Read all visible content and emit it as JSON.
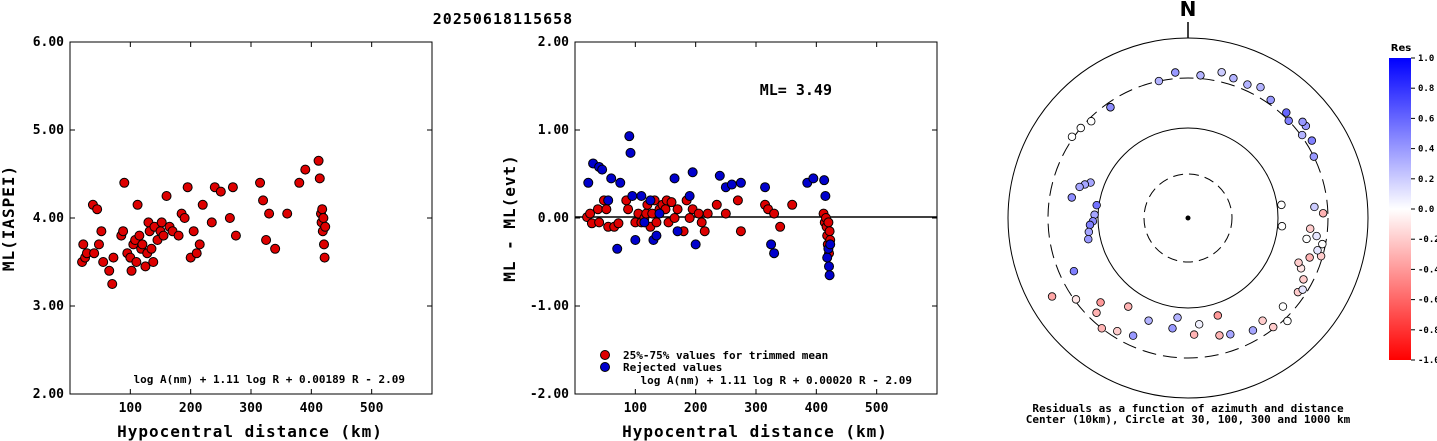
{
  "page_title": "20250618115658",
  "chart_data": [
    {
      "type": "scatter",
      "title": "",
      "xlabel": "Hypocentral distance (km)",
      "ylabel": "ML(IASPEI)",
      "xlim": [
        0,
        600
      ],
      "ylim": [
        2.0,
        6.0
      ],
      "x_ticks": [
        "100",
        "200",
        "300",
        "400",
        "500"
      ],
      "y_ticks": [
        "2.00",
        "3.00",
        "4.00",
        "5.00",
        "6.00"
      ],
      "formula": "log A(nm) + 1.11 log R + 0.00189 R - 2.09",
      "marker_color": "#dd0000",
      "series": [
        {
          "x": [
            20,
            22,
            25,
            28,
            38,
            40,
            45,
            48,
            52,
            55,
            65,
            70,
            72,
            85,
            88,
            90,
            95,
            100,
            102,
            105,
            108,
            110,
            112,
            115,
            118,
            120,
            125,
            128,
            130,
            132,
            135,
            138,
            140,
            145,
            150,
            152,
            155,
            160,
            165,
            170,
            180,
            185,
            190,
            195,
            200,
            205,
            210,
            215,
            220,
            235,
            240,
            250,
            265,
            270,
            275,
            315,
            320,
            325,
            330,
            340,
            360,
            380,
            390,
            412,
            414,
            416,
            417,
            418,
            419,
            420,
            421,
            422,
            423
          ],
          "y": [
            3.5,
            3.7,
            3.55,
            3.6,
            4.15,
            3.6,
            4.1,
            3.7,
            3.85,
            3.5,
            3.4,
            3.25,
            3.55,
            3.8,
            3.85,
            4.4,
            3.6,
            3.55,
            3.4,
            3.7,
            3.75,
            3.5,
            4.15,
            3.8,
            3.65,
            3.7,
            3.45,
            3.6,
            3.95,
            3.85,
            3.65,
            3.5,
            3.9,
            3.75,
            3.85,
            3.95,
            3.8,
            4.25,
            3.9,
            3.85,
            3.8,
            4.05,
            4.0,
            4.35,
            3.55,
            3.85,
            3.6,
            3.7,
            4.15,
            3.95,
            4.35,
            4.3,
            4.0,
            4.35,
            3.8,
            4.4,
            4.2,
            3.75,
            4.05,
            3.65,
            4.05,
            4.4,
            4.55,
            4.65,
            4.45,
            4.05,
            3.95,
            4.1,
            3.85,
            4.0,
            3.7,
            3.55,
            3.9
          ]
        }
      ]
    },
    {
      "type": "scatter",
      "title": "",
      "xlabel": "Hypocentral distance (km)",
      "ylabel": "ML - ML(evt)",
      "xlim": [
        0,
        600
      ],
      "ylim": [
        -2.0,
        2.0
      ],
      "x_ticks": [
        "100",
        "200",
        "300",
        "400",
        "500"
      ],
      "y_ticks": [
        "-2.00",
        "-1.00",
        "0.00",
        "1.00",
        "2.00"
      ],
      "ml_label": "ML= 3.49",
      "formula": "log A(nm) + 1.11 log R + 0.00020 R - 2.09",
      "legend_position": "bottom-left",
      "series": [
        {
          "name": "25%-75% values for trimmed mean",
          "color": "#dd0000",
          "x": [
            20,
            25,
            28,
            38,
            40,
            48,
            52,
            55,
            65,
            72,
            85,
            88,
            100,
            105,
            110,
            115,
            118,
            120,
            125,
            128,
            132,
            135,
            140,
            145,
            150,
            152,
            155,
            160,
            165,
            170,
            180,
            185,
            190,
            195,
            205,
            210,
            215,
            220,
            235,
            250,
            270,
            275,
            315,
            320,
            330,
            340,
            360,
            412,
            414,
            416,
            417,
            418,
            419,
            420,
            421,
            422,
            423
          ],
          "y": [
            0.01,
            0.05,
            -0.06,
            0.1,
            -0.05,
            0.2,
            0.1,
            -0.1,
            -0.1,
            -0.06,
            0.2,
            0.1,
            -0.05,
            0.05,
            -0.05,
            0.0,
            0.05,
            0.15,
            -0.1,
            0.05,
            0.2,
            -0.05,
            0.1,
            0.15,
            0.1,
            0.2,
            -0.05,
            0.18,
            0.0,
            0.1,
            -0.15,
            0.2,
            0.0,
            0.1,
            0.05,
            -0.05,
            -0.15,
            0.05,
            0.15,
            0.05,
            0.2,
            -0.15,
            0.15,
            0.1,
            0.05,
            -0.1,
            0.15,
            0.05,
            -0.05,
            0.0,
            -0.1,
            -0.2,
            -0.3,
            -0.05,
            -0.4,
            -0.15,
            -0.25
          ]
        },
        {
          "name": "Rejected values",
          "color": "#0000cc",
          "x": [
            22,
            30,
            40,
            45,
            55,
            60,
            70,
            75,
            90,
            92,
            95,
            100,
            110,
            115,
            125,
            130,
            135,
            140,
            165,
            170,
            190,
            195,
            200,
            240,
            250,
            260,
            275,
            315,
            325,
            330,
            385,
            395,
            413,
            415,
            418,
            420,
            421,
            422,
            423
          ],
          "y": [
            0.4,
            0.62,
            0.58,
            0.55,
            0.2,
            0.45,
            -0.35,
            0.4,
            0.93,
            0.74,
            0.25,
            -0.25,
            0.25,
            -0.05,
            0.2,
            -0.25,
            -0.2,
            0.05,
            0.45,
            -0.15,
            0.25,
            0.52,
            -0.3,
            0.48,
            0.35,
            0.38,
            0.4,
            0.35,
            -0.3,
            -0.4,
            0.4,
            0.45,
            0.43,
            0.25,
            -0.45,
            -0.35,
            -0.55,
            -0.65,
            -0.3
          ]
        }
      ]
    },
    {
      "type": "scatter",
      "title": "",
      "north_label": "N",
      "caption_line1": "Residuals as a function of azimuth and distance",
      "caption_line2": "Center (10km), Circle at 30, 100, 300 and 1000 km",
      "colorbar_title": "Res",
      "colorbar_ticks": [
        "1.0",
        "0.8",
        "0.6",
        "0.4",
        "0.2",
        "0.0",
        "-0.2",
        "-0.4",
        "-0.6",
        "-0.8",
        "-1.0"
      ],
      "ring_distances_km": [
        30,
        100,
        300,
        1000
      ],
      "stations": {
        "azimuth_deg": [
          305,
          310,
          315,
          325,
          325,
          290,
          288,
          286,
          280,
          278,
          272,
          268,
          266,
          262,
          258,
          234,
          226,
          212,
          214,
          218,
          224,
          240,
          245,
          205,
          201,
          188,
          186,
          177,
          165,
          163,
          174,
          160,
          150,
          142,
          144,
          136,
          133,
          124,
          122,
          118,
          114,
          112,
          108,
          106,
          104,
          101,
          100,
          98,
          95,
          88,
          85,
          64,
          58,
          54,
          52,
          50,
          46,
          43,
          35,
          29,
          24,
          18,
          13,
          5,
          355,
          348,
          95,
          82
        ],
        "distance_km": [
          315,
          300,
          280,
          270,
          270,
          135,
          150,
          165,
          185,
          105,
          108,
          112,
          120,
          125,
          130,
          290,
          200,
          260,
          145,
          300,
          250,
          500,
          220,
          240,
          155,
          160,
          125,
          180,
          200,
          130,
          145,
          210,
          240,
          290,
          225,
          330,
          240,
          255,
          270,
          245,
          210,
          190,
          230,
          290,
          260,
          280,
          195,
          240,
          205,
          270,
          225,
          300,
          360,
          310,
          400,
          400,
          300,
          340,
          340,
          400,
          360,
          370,
          400,
          330,
          360,
          300,
          110,
          110
        ],
        "residual": [
          0.0,
          0.0,
          0.0,
          0.45,
          0.45,
          0.35,
          0.35,
          0.35,
          0.45,
          0.55,
          0.35,
          0.45,
          0.5,
          0.35,
          0.4,
          -0.1,
          -0.4,
          -0.2,
          -0.3,
          -0.3,
          -0.3,
          -0.35,
          0.5,
          0.4,
          0.3,
          0.4,
          0.3,
          -0.3,
          -0.3,
          -0.4,
          0.05,
          0.35,
          0.35,
          -0.2,
          -0.2,
          0.0,
          0.0,
          -0.2,
          0.1,
          -0.2,
          -0.1,
          -0.2,
          -0.3,
          -0.2,
          0.1,
          0.0,
          0.0,
          0.1,
          -0.2,
          -0.3,
          0.2,
          0.4,
          0.5,
          0.3,
          0.4,
          0.4,
          0.5,
          0.6,
          0.4,
          0.3,
          0.3,
          0.3,
          0.2,
          0.3,
          0.4,
          0.3,
          0.0,
          0.0
        ]
      }
    }
  ]
}
